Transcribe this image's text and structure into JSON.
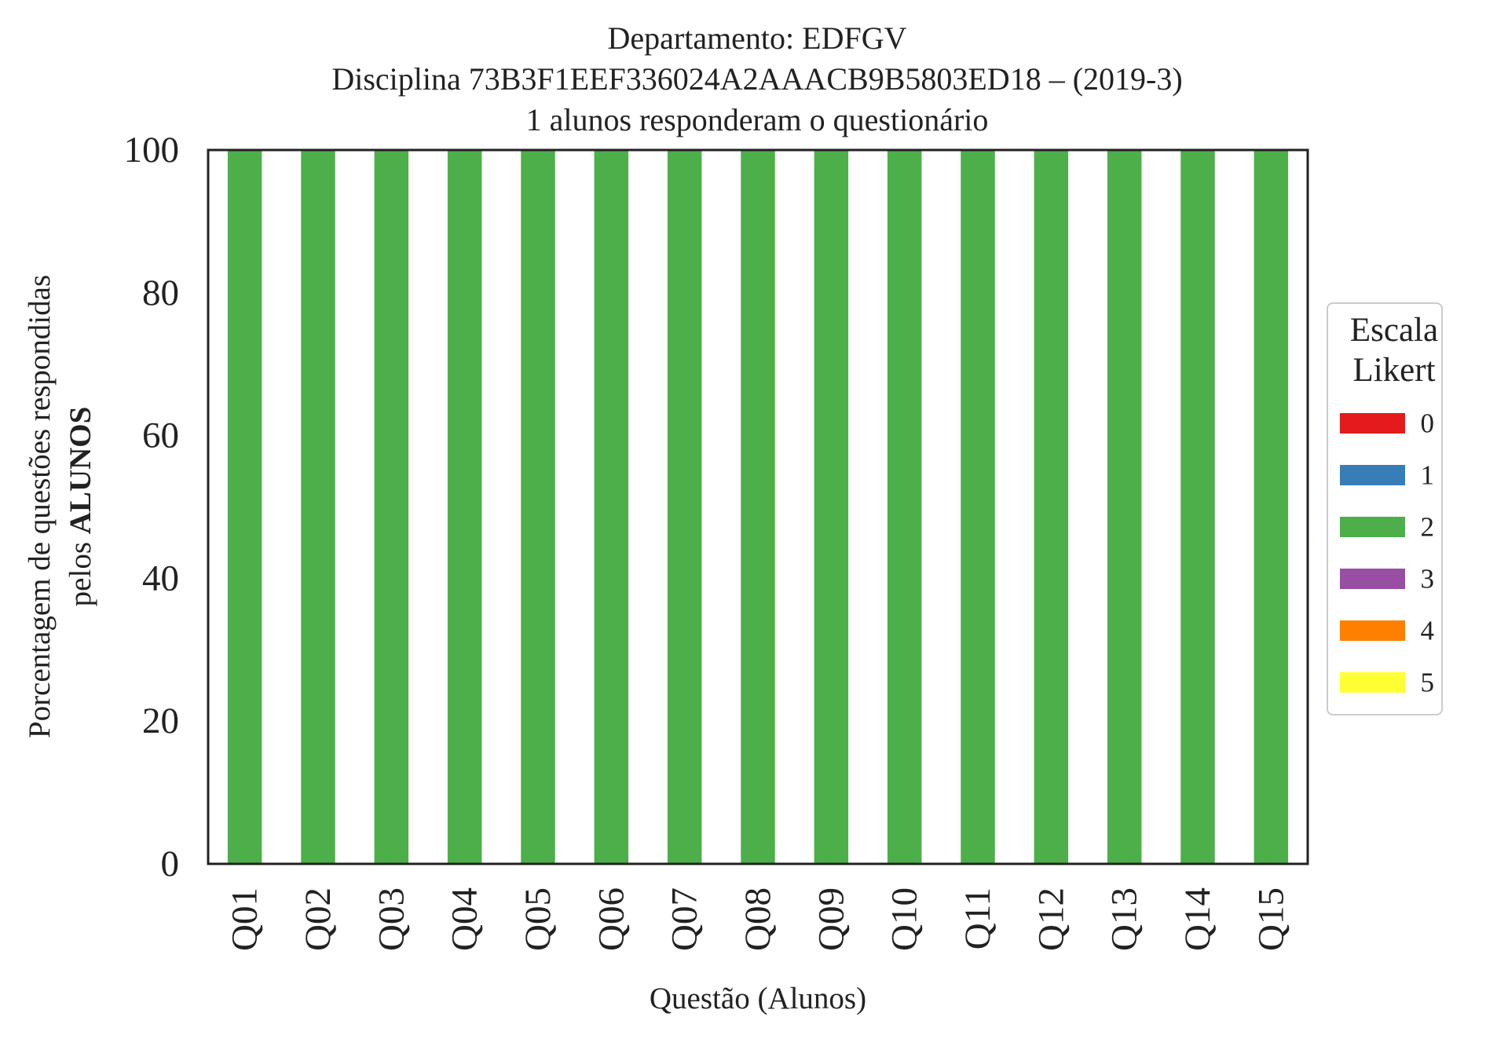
{
  "chart_data": {
    "type": "bar",
    "stacked": true,
    "title_lines": [
      "Departamento: EDFGV",
      "Disciplina 73B3F1EEF336024A2AAACB9B5803ED18 – (2019-3)",
      "1 alunos responderam o questionário"
    ],
    "xlabel": "Questão (Alunos)",
    "ylabel_line1": "Porcentagem de questões respondidas",
    "ylabel_line2_prefix": "pelos ",
    "ylabel_line2_bold": "ALUNOS",
    "ylim": [
      0,
      100
    ],
    "yticks": [
      0,
      20,
      40,
      60,
      80,
      100
    ],
    "categories": [
      "Q01",
      "Q02",
      "Q03",
      "Q04",
      "Q05",
      "Q06",
      "Q07",
      "Q08",
      "Q09",
      "Q10",
      "Q11",
      "Q12",
      "Q13",
      "Q14",
      "Q15"
    ],
    "series": [
      {
        "name": "0",
        "color": "#e41a1c",
        "values": [
          0,
          0,
          0,
          0,
          0,
          0,
          0,
          0,
          0,
          0,
          0,
          0,
          0,
          0,
          0
        ]
      },
      {
        "name": "1",
        "color": "#377eb8",
        "values": [
          0,
          0,
          0,
          0,
          0,
          0,
          0,
          0,
          0,
          0,
          0,
          0,
          0,
          0,
          0
        ]
      },
      {
        "name": "2",
        "color": "#4daf4a",
        "values": [
          100,
          100,
          100,
          100,
          100,
          100,
          100,
          100,
          100,
          100,
          100,
          100,
          100,
          100,
          100
        ]
      },
      {
        "name": "3",
        "color": "#984ea3",
        "values": [
          0,
          0,
          0,
          0,
          0,
          0,
          0,
          0,
          0,
          0,
          0,
          0,
          0,
          0,
          0
        ]
      },
      {
        "name": "4",
        "color": "#ff7f00",
        "values": [
          0,
          0,
          0,
          0,
          0,
          0,
          0,
          0,
          0,
          0,
          0,
          0,
          0,
          0,
          0
        ]
      },
      {
        "name": "5",
        "color": "#ffff33",
        "values": [
          0,
          0,
          0,
          0,
          0,
          0,
          0,
          0,
          0,
          0,
          0,
          0,
          0,
          0,
          0
        ]
      }
    ],
    "legend": {
      "title_lines": [
        "Escala",
        "Likert"
      ],
      "placement": "right"
    },
    "grid": false
  }
}
